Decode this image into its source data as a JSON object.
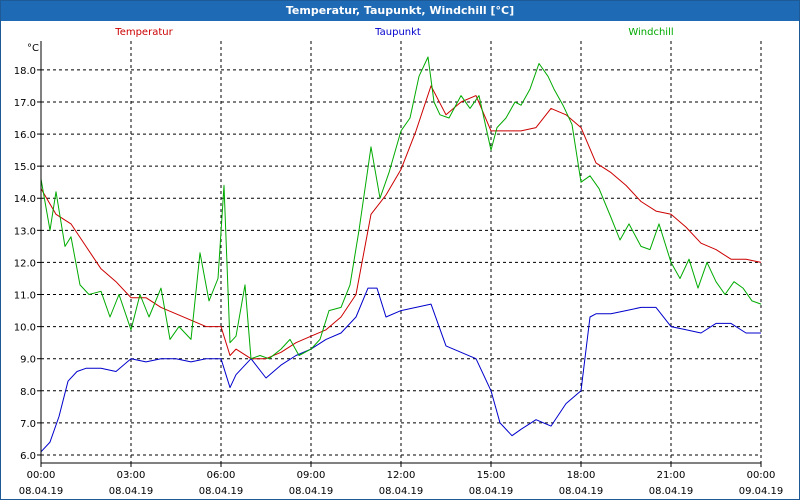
{
  "window": {
    "title": "Temperatur, Taupunkt, Windchill [°C]"
  },
  "chart_data": {
    "type": "line",
    "title": "Temperatur, Taupunkt, Windchill [°C]",
    "ylabel": "°C",
    "ylim": [
      5.75,
      18.9
    ],
    "xlim": [
      0,
      24
    ],
    "grid": true,
    "legend_placement": "top",
    "y_ticks": [
      "6.0",
      "7.0",
      "8.0",
      "9.0",
      "10.0",
      "11.0",
      "12.0",
      "13.0",
      "14.0",
      "15.0",
      "16.0",
      "17.0",
      "18.0"
    ],
    "x_ticks": [
      {
        "time": "00:00",
        "date": "08.04.19"
      },
      {
        "time": "03:00",
        "date": "08.04.19"
      },
      {
        "time": "06:00",
        "date": "08.04.19"
      },
      {
        "time": "09:00",
        "date": "08.04.19"
      },
      {
        "time": "12:00",
        "date": "08.04.19"
      },
      {
        "time": "15:00",
        "date": "08.04.19"
      },
      {
        "time": "18:00",
        "date": "08.04.19"
      },
      {
        "time": "21:00",
        "date": "08.04.19"
      },
      {
        "time": "00:00",
        "date": "09.04.19"
      }
    ],
    "series": [
      {
        "name": "Temperatur",
        "color": "#cc0000",
        "x": [
          0,
          0.5,
          1,
          1.5,
          2,
          2.5,
          3,
          3.5,
          4,
          4.5,
          5,
          5.5,
          6,
          6.3,
          6.5,
          7,
          7.5,
          8,
          8.5,
          9,
          9.5,
          10,
          10.5,
          11,
          11.5,
          12,
          12.5,
          13,
          13.5,
          14,
          14.5,
          15,
          15.5,
          16,
          16.5,
          17,
          17.5,
          18,
          18.5,
          19,
          19.5,
          20,
          20.5,
          21,
          21.5,
          22,
          22.5,
          23,
          23.5,
          24
        ],
        "values": [
          14.3,
          13.5,
          13.2,
          12.5,
          11.8,
          11.4,
          10.9,
          10.9,
          10.6,
          10.4,
          10.2,
          10.0,
          10.0,
          9.1,
          9.3,
          9.0,
          9.0,
          9.2,
          9.5,
          9.7,
          9.9,
          10.3,
          11.0,
          13.5,
          14.1,
          14.9,
          16.1,
          17.5,
          16.6,
          17.0,
          17.2,
          16.1,
          16.1,
          16.1,
          16.2,
          16.8,
          16.6,
          16.2,
          15.1,
          14.8,
          14.4,
          13.9,
          13.6,
          13.5,
          13.1,
          12.6,
          12.4,
          12.1,
          12.1,
          12.0
        ]
      },
      {
        "name": "Taupunkt",
        "color": "#0000cc",
        "x": [
          0,
          0.3,
          0.6,
          0.9,
          1.2,
          1.5,
          2,
          2.5,
          3,
          3.5,
          4,
          4.5,
          5,
          5.5,
          6,
          6.3,
          6.5,
          7,
          7.5,
          8,
          8.5,
          9,
          9.5,
          10,
          10.5,
          10.9,
          11.2,
          11.5,
          12,
          12.5,
          13,
          13.5,
          14,
          14.5,
          15,
          15.3,
          15.7,
          16,
          16.5,
          17,
          17.5,
          18,
          18.3,
          18.5,
          19,
          19.5,
          20,
          20.5,
          21,
          21.5,
          22,
          22.5,
          23,
          23.5,
          24
        ],
        "values": [
          6.1,
          6.4,
          7.2,
          8.3,
          8.6,
          8.7,
          8.7,
          8.6,
          9.0,
          8.9,
          9.0,
          9.0,
          8.9,
          9.0,
          9.0,
          8.1,
          8.5,
          9.0,
          8.4,
          8.8,
          9.1,
          9.3,
          9.6,
          9.8,
          10.3,
          11.2,
          11.2,
          10.3,
          10.5,
          10.6,
          10.7,
          9.4,
          9.2,
          9.0,
          8.0,
          7.0,
          6.6,
          6.8,
          7.1,
          6.9,
          7.6,
          8.0,
          10.3,
          10.4,
          10.4,
          10.5,
          10.6,
          10.6,
          10.0,
          9.9,
          9.8,
          10.1,
          10.1,
          9.8,
          9.8
        ]
      },
      {
        "name": "Windchill",
        "color": "#00aa00",
        "x": [
          0,
          0.3,
          0.5,
          0.8,
          1,
          1.3,
          1.6,
          2,
          2.3,
          2.6,
          3,
          3.3,
          3.6,
          4,
          4.3,
          4.6,
          5,
          5.3,
          5.6,
          5.9,
          6.1,
          6.3,
          6.5,
          6.8,
          7,
          7.3,
          7.6,
          8,
          8.3,
          8.6,
          9,
          9.3,
          9.6,
          10,
          10.3,
          10.6,
          11,
          11.3,
          11.6,
          12,
          12.3,
          12.6,
          12.9,
          13.1,
          13.3,
          13.6,
          14,
          14.3,
          14.6,
          15,
          15.2,
          15.5,
          15.8,
          16,
          16.3,
          16.6,
          16.9,
          17.1,
          17.4,
          17.7,
          18,
          18.3,
          18.6,
          19,
          19.3,
          19.6,
          20,
          20.3,
          20.6,
          21,
          21.3,
          21.6,
          21.9,
          22.2,
          22.5,
          22.8,
          23.1,
          23.4,
          23.7,
          24
        ],
        "values": [
          14.6,
          13.0,
          14.2,
          12.5,
          12.8,
          11.3,
          11.0,
          11.1,
          10.3,
          11.0,
          9.9,
          11.0,
          10.3,
          11.2,
          9.6,
          10.0,
          9.6,
          12.3,
          10.8,
          11.5,
          14.4,
          9.5,
          9.7,
          11.3,
          9.0,
          9.1,
          9.0,
          9.3,
          9.6,
          9.1,
          9.3,
          9.6,
          10.5,
          10.6,
          11.3,
          13.0,
          15.6,
          14.0,
          14.8,
          16.1,
          16.5,
          17.8,
          18.4,
          17.0,
          16.6,
          16.5,
          17.2,
          16.8,
          17.2,
          15.5,
          16.2,
          16.5,
          17.0,
          16.9,
          17.4,
          18.2,
          17.8,
          17.4,
          16.9,
          16.3,
          14.5,
          14.7,
          14.3,
          13.4,
          12.7,
          13.2,
          12.5,
          12.4,
          13.2,
          12.0,
          11.5,
          12.1,
          11.2,
          12.0,
          11.4,
          11.0,
          11.4,
          11.2,
          10.8,
          10.7
        ]
      }
    ]
  }
}
